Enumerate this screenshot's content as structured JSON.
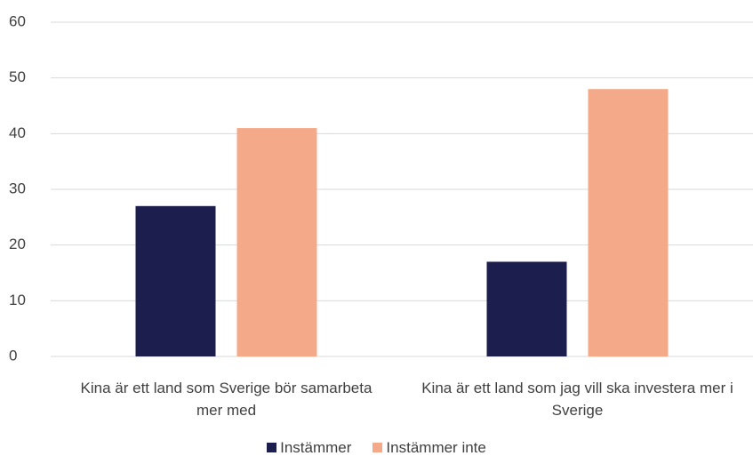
{
  "chart_data": {
    "type": "bar",
    "categories": [
      "Kina är ett land som Sverige bör samarbeta mer med",
      "Kina är ett land som jag vill ska investera mer i Sverige"
    ],
    "series": [
      {
        "name": "Instämmer",
        "color": "#1c1f4e",
        "values": [
          27,
          17
        ]
      },
      {
        "name": "Instämmer inte",
        "color": "#f4aa89",
        "values": [
          41,
          48
        ]
      }
    ],
    "ylim": [
      0,
      60
    ],
    "yticks": [
      0,
      10,
      20,
      30,
      40,
      50,
      60
    ],
    "grid": true,
    "legend": "bottom"
  }
}
